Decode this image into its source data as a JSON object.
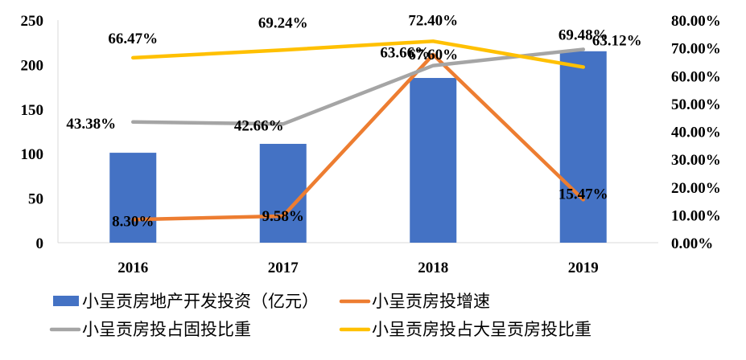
{
  "chart_data": {
    "type": "bar",
    "categories": [
      "2016",
      "2017",
      "2018",
      "2019"
    ],
    "title": "",
    "xlabel": "",
    "ylabel": "",
    "ylim": [
      0,
      250
    ],
    "y2lim": [
      0,
      0.8
    ],
    "yticks": [
      "0",
      "50",
      "100",
      "150",
      "200",
      "250"
    ],
    "y2ticks": [
      "0.00%",
      "10.00%",
      "20.00%",
      "30.00%",
      "40.00%",
      "50.00%",
      "60.00%",
      "70.00%",
      "80.00%"
    ],
    "grid": false,
    "legend_position": "bottom",
    "series": [
      {
        "name": "小呈贡房地产开发投资（亿元）",
        "type": "bar",
        "axis": "left",
        "color": "#4472C4",
        "values": [
          101,
          111,
          185,
          215
        ]
      },
      {
        "name": "小呈贡房投增速",
        "type": "line",
        "axis": "right",
        "color": "#ED7D31",
        "values": [
          0.083,
          0.0958,
          0.676,
          0.1547
        ],
        "labels": [
          "8.30%",
          "9.58%",
          "67.60%",
          "15.47%"
        ]
      },
      {
        "name": "小呈贡房投占固投比重",
        "type": "line",
        "axis": "right",
        "color": "#A5A5A5",
        "values": [
          0.4338,
          0.4266,
          0.6366,
          0.6948
        ],
        "labels": [
          "43.38%",
          "42.66%",
          "63.66%",
          "69.48%"
        ]
      },
      {
        "name": "小呈贡房投占大呈贡房投比重",
        "type": "line",
        "axis": "right",
        "color": "#FFC000",
        "values": [
          0.6647,
          0.6924,
          0.724,
          0.6312
        ],
        "labels": [
          "66.47%",
          "69.24%",
          "72.40%",
          "63.12%"
        ]
      }
    ]
  }
}
